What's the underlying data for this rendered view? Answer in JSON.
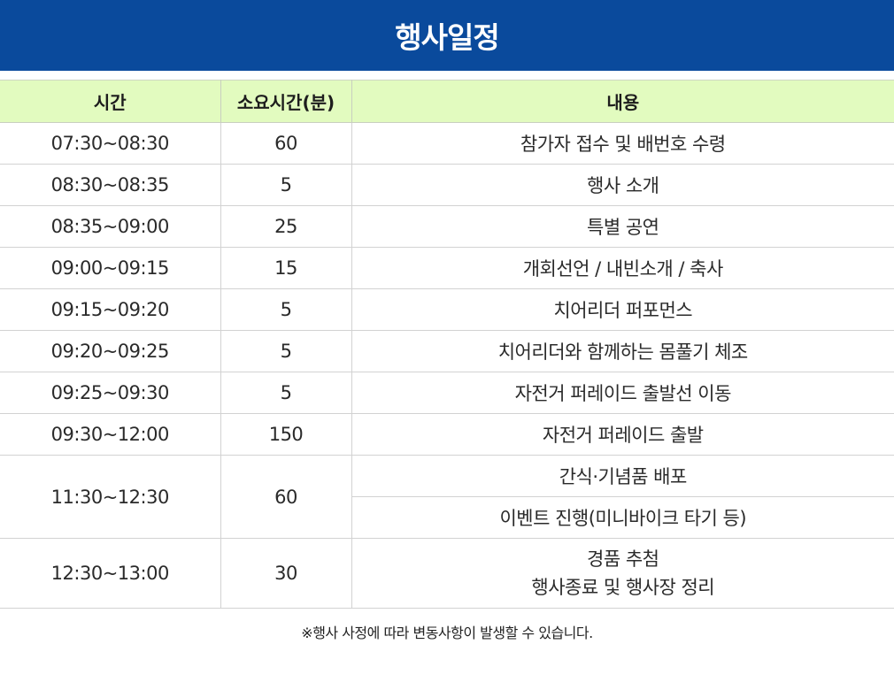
{
  "header": {
    "title": "행사일정"
  },
  "table": {
    "columns": [
      "시간",
      "소요시간(분)",
      "내용"
    ],
    "rows": [
      {
        "time": "07:30~08:30",
        "duration": "60",
        "content": "참가자 접수 및 배번호 수령"
      },
      {
        "time": "08:30~08:35",
        "duration": "5",
        "content": "행사 소개"
      },
      {
        "time": "08:35~09:00",
        "duration": "25",
        "content": "특별 공연"
      },
      {
        "time": "09:00~09:15",
        "duration": "15",
        "content": "개회선언 / 내빈소개 / 축사"
      },
      {
        "time": "09:15~09:20",
        "duration": "5",
        "content": "치어리더 퍼포먼스"
      },
      {
        "time": "09:20~09:25",
        "duration": "5",
        "content": "치어리더와 함께하는 몸풀기 체조"
      },
      {
        "time": "09:25~09:30",
        "duration": "5",
        "content": "자전거 퍼레이드 출발선 이동"
      },
      {
        "time": "09:30~12:00",
        "duration": "150",
        "content": "자전거 퍼레이드 출발"
      },
      {
        "time": "11:30~12:30",
        "duration": "60",
        "content": "간식·기념품 배포",
        "content2": "이벤트 진행(미니바이크 타기 등)"
      },
      {
        "time": "12:30~13:00",
        "duration": "30",
        "content": "경품 추첨",
        "content2": "행사종료 및 행사장 정리"
      }
    ]
  },
  "footnote": "※행사 사정에 따라 변동사항이 발생할 수 있습니다."
}
